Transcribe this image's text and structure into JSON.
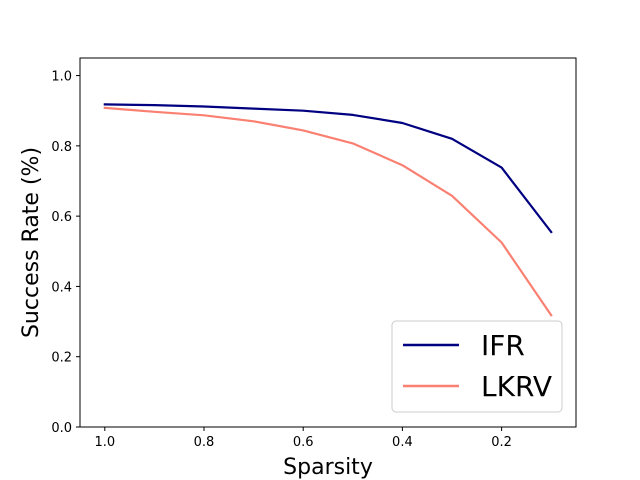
{
  "chart_data": {
    "type": "line",
    "title": "",
    "xlabel": "Sparsity",
    "ylabel": "Success Rate (%)",
    "x": [
      1.0,
      0.9,
      0.8,
      0.7,
      0.6,
      0.5,
      0.4,
      0.3,
      0.2,
      0.1
    ],
    "x_inverted": true,
    "xlim": [
      1.05,
      0.05
    ],
    "ylim": [
      0.0,
      1.05
    ],
    "xticks": [
      1.0,
      0.8,
      0.6,
      0.4,
      0.2
    ],
    "xtick_labels": [
      "1.0",
      "0.8",
      "0.6",
      "0.4",
      "0.2"
    ],
    "yticks": [
      0.0,
      0.2,
      0.4,
      0.6,
      0.8,
      1.0
    ],
    "ytick_labels": [
      "0.0",
      "0.2",
      "0.4",
      "0.6",
      "0.8",
      "1.0"
    ],
    "grid": false,
    "legend_position": "lower-right",
    "series": [
      {
        "name": "IFR",
        "color": "#000080",
        "values": [
          0.918,
          0.916,
          0.912,
          0.906,
          0.9,
          0.888,
          0.865,
          0.82,
          0.738,
          0.555
        ]
      },
      {
        "name": "LKRV",
        "color": "#fa8072",
        "values": [
          0.908,
          0.897,
          0.887,
          0.87,
          0.844,
          0.807,
          0.745,
          0.658,
          0.525,
          0.318
        ]
      }
    ]
  }
}
